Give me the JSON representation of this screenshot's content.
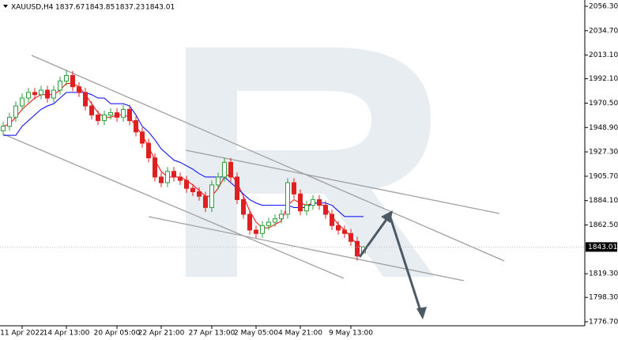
{
  "chart_data": {
    "type": "candlestick",
    "symbol": "XAUUSD,H4",
    "header_ohlc": [
      1837.67,
      1843.85,
      1837.23,
      1843.01
    ],
    "categories": [
      null,
      null,
      null,
      "11 Apr 2022",
      null,
      null,
      null,
      null,
      null,
      null,
      "14 Apr 13:00",
      null,
      null,
      null,
      null,
      null,
      null,
      null,
      "20 Apr 05:00",
      null,
      null,
      null,
      null,
      null,
      null,
      "22 Apr 21:00",
      null,
      null,
      null,
      null,
      null,
      null,
      null,
      "27 Apr 13:00",
      null,
      null,
      null,
      null,
      null,
      null,
      "2 May 05:00",
      null,
      null,
      null,
      null,
      null,
      null,
      "4 May 21:00",
      null,
      null,
      null,
      null,
      null,
      null,
      null,
      "9 May 13:00",
      null,
      null
    ],
    "open": [
      1946,
      1950,
      1958,
      1968,
      1975,
      1980,
      1978,
      1982,
      1975,
      1982,
      1990,
      1995,
      1985,
      1980,
      1968,
      1960,
      1955,
      1960,
      1962,
      1958,
      1965,
      1955,
      1945,
      1935,
      1922,
      1905,
      1900,
      1910,
      1905,
      1902,
      1895,
      1892,
      1888,
      1878,
      1898,
      1905,
      1918,
      1905,
      1885,
      1872,
      1858,
      1855,
      1862,
      1865,
      1868,
      1872,
      1900,
      1890,
      1875,
      1880,
      1885,
      1880,
      1872,
      1862,
      1858,
      1855,
      1848,
      1837.67
    ],
    "high": [
      1954,
      1962,
      1972,
      1979,
      1984,
      1984,
      1986,
      1986,
      1986,
      1994,
      2000,
      1999,
      1989,
      1984,
      1972,
      1964,
      1964,
      1966,
      1966,
      1969,
      1969,
      1959,
      1949,
      1939,
      1926,
      1909,
      1914,
      1914,
      1909,
      1906,
      1899,
      1896,
      1892,
      1902,
      1909,
      1922,
      1922,
      1909,
      1889,
      1876,
      1862,
      1866,
      1869,
      1872,
      1876,
      1904,
      1904,
      1894,
      1884,
      1889,
      1889,
      1884,
      1876,
      1866,
      1862,
      1859,
      1852,
      1843.85
    ],
    "low": [
      1942,
      1946,
      1954,
      1964,
      1971,
      1974,
      1974,
      1971,
      1971,
      1978,
      1986,
      1981,
      1976,
      1964,
      1956,
      1951,
      1951,
      1956,
      1954,
      1954,
      1951,
      1941,
      1931,
      1918,
      1901,
      1896,
      1896,
      1901,
      1898,
      1891,
      1888,
      1884,
      1874,
      1874,
      1894,
      1901,
      1901,
      1881,
      1868,
      1854,
      1851,
      1851,
      1858,
      1861,
      1864,
      1868,
      1886,
      1871,
      1871,
      1876,
      1876,
      1868,
      1858,
      1854,
      1851,
      1844,
      1831,
      1837.23
    ],
    "close": [
      1950,
      1958,
      1968,
      1975,
      1980,
      1978,
      1982,
      1975,
      1982,
      1990,
      1995,
      1985,
      1980,
      1968,
      1960,
      1955,
      1960,
      1962,
      1958,
      1965,
      1955,
      1945,
      1935,
      1922,
      1905,
      1900,
      1910,
      1905,
      1902,
      1895,
      1892,
      1888,
      1878,
      1898,
      1905,
      1918,
      1905,
      1885,
      1872,
      1858,
      1855,
      1862,
      1865,
      1868,
      1872,
      1900,
      1890,
      1875,
      1880,
      1885,
      1880,
      1872,
      1862,
      1858,
      1855,
      1848,
      1835,
      1843.01
    ],
    "up_color": "#2e9d3a",
    "down_color": "#e02020",
    "series": [
      {
        "color": "#ff0000",
        "values": [
          1950,
          1952,
          1958,
          1965,
          1970,
          1975,
          1978,
          1978,
          1978,
          1982,
          1988,
          1988,
          1985,
          1978,
          1970,
          1962,
          1958,
          1958,
          1960,
          1960,
          1958,
          1950,
          1942,
          1932,
          1920,
          1910,
          1905,
          1905,
          1905,
          1902,
          1898,
          1893,
          1888,
          1888,
          1895,
          1905,
          1908,
          1900,
          1888,
          1875,
          1865,
          1860,
          1860,
          1863,
          1866,
          1880,
          1885,
          1882,
          1880,
          1882,
          1882,
          1878,
          1870,
          1863,
          1858,
          1852,
          1845,
          1842
        ]
      },
      {
        "color": "#0000ff",
        "values": [
          1942,
          1942,
          1942,
          1950,
          1955,
          1960,
          1965,
          1968,
          1970,
          1975,
          1980,
          1980,
          1980,
          1980,
          1978,
          1975,
          1975,
          1970,
          1970,
          1970,
          1968,
          1960,
          1950,
          1945,
          1938,
          1930,
          1925,
          1920,
          1918,
          1915,
          1912,
          1908,
          1905,
          1905,
          1905,
          1905,
          1900,
          1895,
          1890,
          1885,
          1882,
          1880,
          1880,
          1880,
          1880,
          1880,
          1878,
          1878,
          1878,
          1882,
          1882,
          1882,
          1880,
          1875,
          1870,
          1870,
          1870,
          1870
        ]
      }
    ],
    "last_price": 1843.01,
    "ylim": [
      1773.2,
      2061.9
    ],
    "yticks": [
      {
        "value": 2056.3,
        "label": "2056.30"
      },
      {
        "value": 2034.7,
        "label": "2034.70"
      },
      {
        "value": 2013.1,
        "label": "2013.10"
      },
      {
        "value": 1992.1,
        "label": "1992.10"
      },
      {
        "value": 1970.5,
        "label": "1970.50"
      },
      {
        "value": 1948.9,
        "label": "1948.90"
      },
      {
        "value": 1927.3,
        "label": "1927.30"
      },
      {
        "value": 1905.7,
        "label": "1905.70"
      },
      {
        "value": 1884.1,
        "label": "1884.10"
      },
      {
        "value": 1862.5,
        "label": "1862.50"
      },
      {
        "value": 1819.3,
        "label": "1819.30"
      },
      {
        "value": 1798.3,
        "label": "1798.30"
      },
      {
        "value": 1776.7,
        "label": "1776.70"
      }
    ]
  }
}
